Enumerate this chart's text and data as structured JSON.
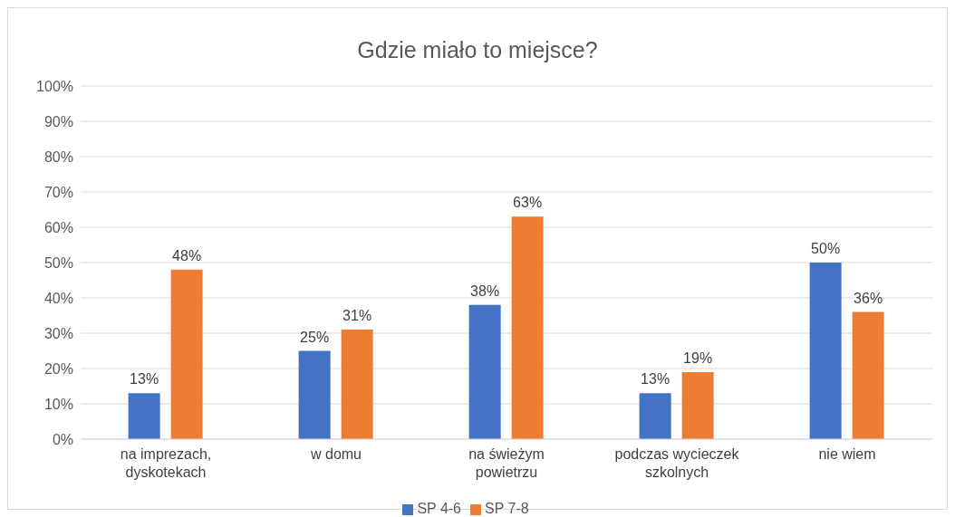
{
  "chart_data": {
    "type": "bar",
    "title": "Gdzie miało to miejsce?",
    "categories": [
      "na imprezach, dyskotekach",
      "w domu",
      "na świeżym powietrzu",
      "podczas wycieczek szkolnych",
      "nie wiem"
    ],
    "series": [
      {
        "name": "SP 4-6",
        "color": "#4472c4",
        "values": [
          13,
          25,
          38,
          13,
          50
        ],
        "value_labels": [
          "13%",
          "25%",
          "38%",
          "13%",
          "50%"
        ]
      },
      {
        "name": "SP 7-8",
        "color": "#ed7d31",
        "values": [
          48,
          31,
          63,
          19,
          36
        ],
        "value_labels": [
          "48%",
          "31%",
          "63%",
          "19%",
          "36%"
        ]
      }
    ],
    "ylim": [
      0,
      100
    ],
    "yticks": [
      {
        "value": 0,
        "label": "0%"
      },
      {
        "value": 10,
        "label": "10%"
      },
      {
        "value": 20,
        "label": "20%"
      },
      {
        "value": 30,
        "label": "30%"
      },
      {
        "value": 40,
        "label": "40%"
      },
      {
        "value": 50,
        "label": "50%"
      },
      {
        "value": 60,
        "label": "60%"
      },
      {
        "value": 70,
        "label": "70%"
      },
      {
        "value": 80,
        "label": "80%"
      },
      {
        "value": 90,
        "label": "90%"
      },
      {
        "value": 100,
        "label": "100%"
      }
    ],
    "grid": "y",
    "legend": "bottom"
  }
}
